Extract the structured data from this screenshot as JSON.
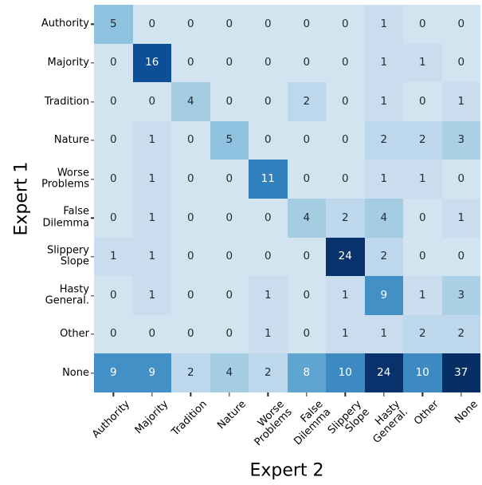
{
  "chart_data": {
    "type": "heatmap",
    "title": "",
    "xlabel": "Expert 2",
    "ylabel": "Expert 1",
    "labels": [
      "Authority",
      "Majority",
      "Tradition",
      "Nature",
      "Worse\nProblems",
      "False\nDilemma",
      "Slippery\nSlope",
      "Hasty\nGeneral.",
      "Other",
      "None"
    ],
    "matrix": [
      [
        5,
        0,
        0,
        0,
        0,
        0,
        0,
        1,
        0,
        0
      ],
      [
        0,
        16,
        0,
        0,
        0,
        0,
        0,
        1,
        1,
        0
      ],
      [
        0,
        0,
        4,
        0,
        0,
        2,
        0,
        1,
        0,
        1
      ],
      [
        0,
        1,
        0,
        5,
        0,
        0,
        0,
        2,
        2,
        3
      ],
      [
        0,
        1,
        0,
        0,
        11,
        0,
        0,
        1,
        1,
        0
      ],
      [
        0,
        1,
        0,
        0,
        0,
        4,
        2,
        4,
        0,
        1
      ],
      [
        1,
        1,
        0,
        0,
        0,
        0,
        24,
        2,
        0,
        0
      ],
      [
        0,
        1,
        0,
        0,
        1,
        0,
        1,
        9,
        1,
        3
      ],
      [
        0,
        0,
        0,
        0,
        1,
        0,
        1,
        1,
        2,
        2
      ],
      [
        9,
        9,
        2,
        4,
        2,
        8,
        10,
        24,
        10,
        37
      ]
    ],
    "colormap": "Blues",
    "color_scale": {
      "0": "#d3e4f1",
      "1": "#c9ddef",
      "2": "#bdd7ec",
      "3": "#abd0e6",
      "4": "#a4cce3",
      "5": "#8fc2de",
      "8": "#5ea5d1",
      "9": "#4290c5",
      "10": "#3c8ac1",
      "11": "#3181be",
      "16": "#0c4e98",
      "24": "#09326c",
      "37": "#082f65"
    },
    "annot_text_dark": "#1f2a35",
    "annot_text_light": "#ffffff",
    "light_text_min_value": 8,
    "tick_color": "#262626",
    "background": "#ffffff",
    "legend": "none",
    "grid": "off"
  }
}
